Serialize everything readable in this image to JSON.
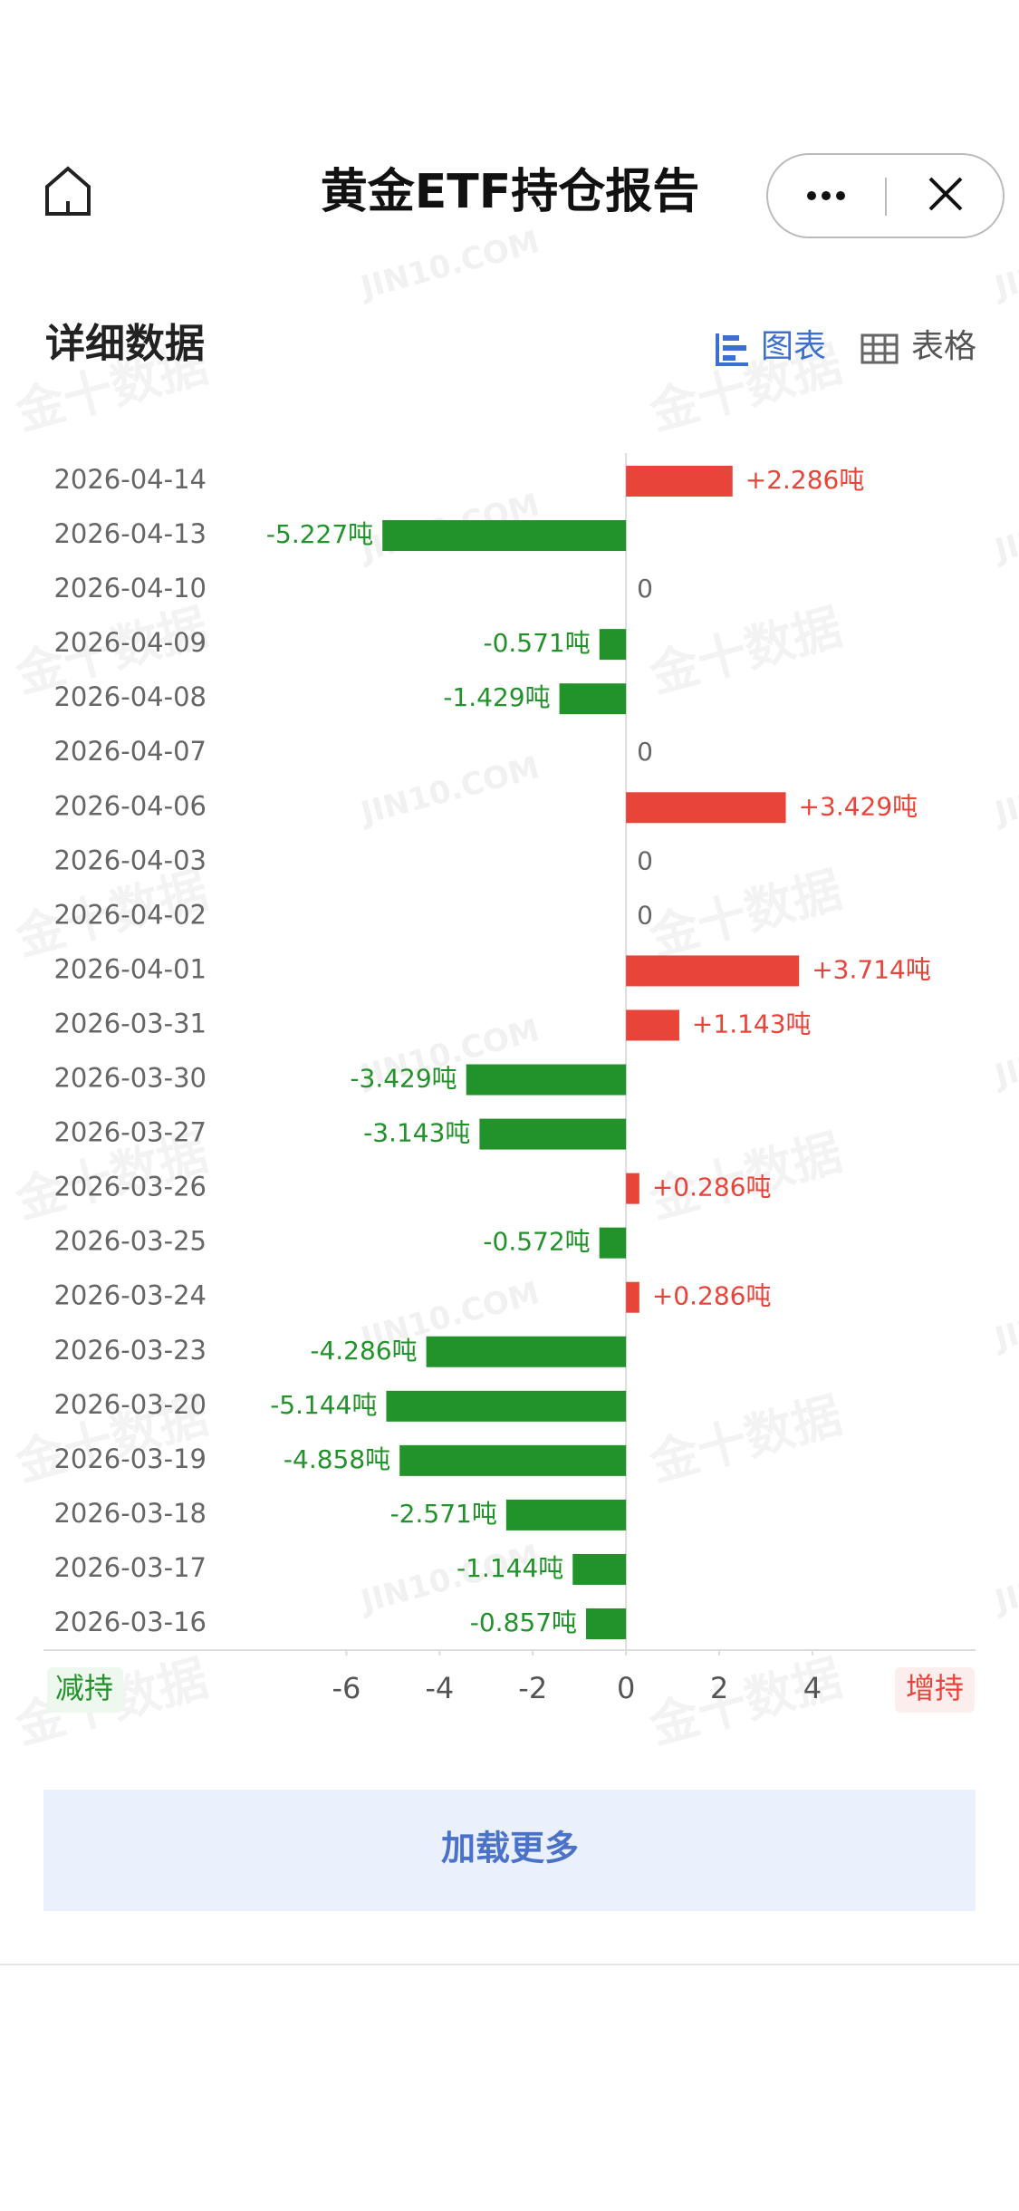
{
  "header": {
    "title": "黄金ETF持仓报告"
  },
  "section": {
    "title": "详细数据",
    "tabs": [
      "图表",
      "表格"
    ]
  },
  "watermarks": [
    "JIN10.COM",
    "金十数据"
  ],
  "chart_data": {
    "type": "bar",
    "orientation": "horizontal",
    "categories": [
      "2026-04-14",
      "2026-04-13",
      "2026-04-10",
      "2026-04-09",
      "2026-04-08",
      "2026-04-07",
      "2026-04-06",
      "2026-04-03",
      "2026-04-02",
      "2026-04-01",
      "2026-03-31",
      "2026-03-30",
      "2026-03-27",
      "2026-03-26",
      "2026-03-25",
      "2026-03-24",
      "2026-03-23",
      "2026-03-20",
      "2026-03-19",
      "2026-03-18",
      "2026-03-17",
      "2026-03-16"
    ],
    "values": [
      2.286,
      -5.227,
      0,
      -0.571,
      -1.429,
      0,
      3.429,
      0,
      0,
      3.714,
      1.143,
      -3.429,
      -3.143,
      0.286,
      -0.572,
      0.286,
      -4.286,
      -5.144,
      -4.858,
      -2.571,
      -1.144,
      -0.857
    ],
    "value_labels": [
      "+2.286吨",
      "-5.227吨",
      "0",
      "-0.571吨",
      "-1.429吨",
      "0",
      "+3.429吨",
      "0",
      "0",
      "+3.714吨",
      "+1.143吨",
      "-3.429吨",
      "-3.143吨",
      "+0.286吨",
      "-0.572吨",
      "+0.286吨",
      "-4.286吨",
      "-5.144吨",
      "-4.858吨",
      "-2.571吨",
      "-1.144吨",
      "-0.857吨"
    ],
    "positive_color": "#e8443a",
    "negative_color": "#22922a",
    "xlim": [
      -12.5,
      7.5
    ],
    "xticks": [
      -6,
      -4,
      -2,
      0,
      2,
      4
    ],
    "negative_label": "减持",
    "positive_label": "增持"
  },
  "button": {
    "label": "加载更多"
  }
}
